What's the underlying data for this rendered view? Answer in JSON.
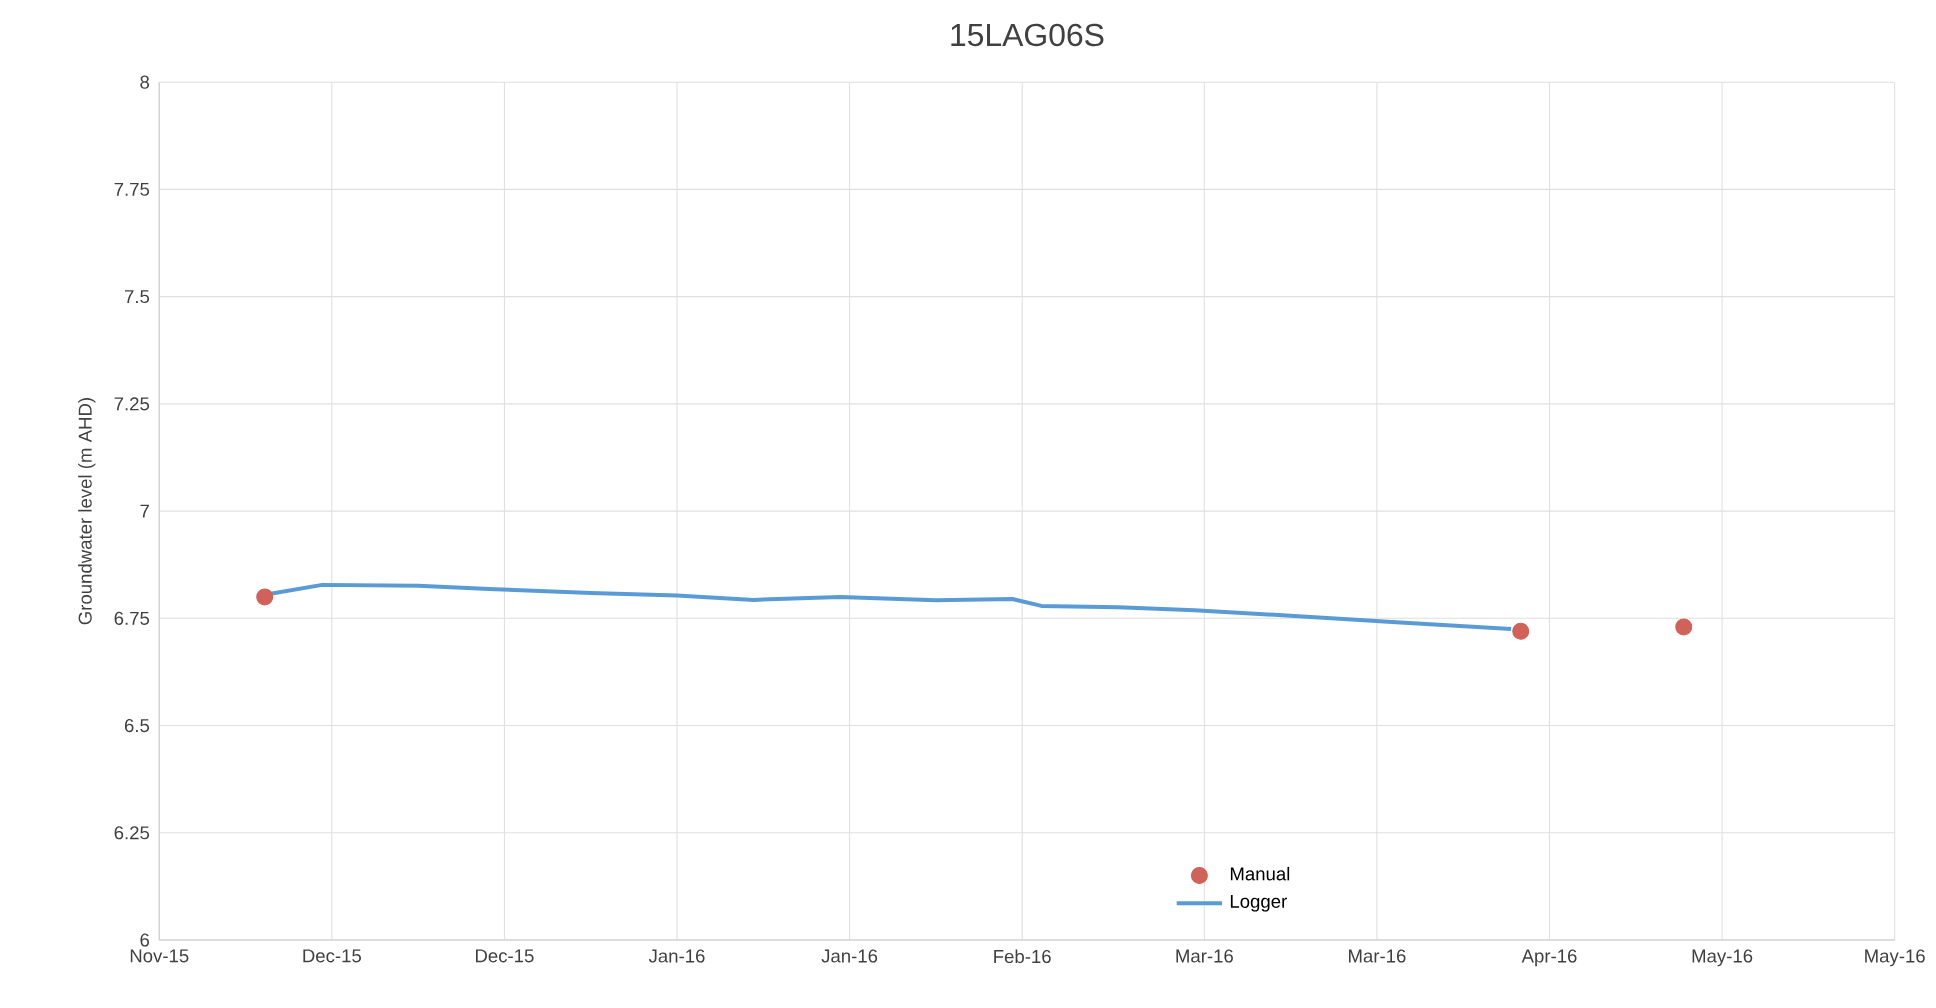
{
  "chart_data": {
    "type": "line",
    "title": "15LAG06S",
    "ylabel": "Groundwater level (m AHD)",
    "xlim": [
      "2015-11-20",
      "2016-05-19"
    ],
    "xticks": [
      {
        "value": "2015-11-20",
        "label": "Nov-15"
      },
      {
        "value": "2015-12-08",
        "label": "Dec-15"
      },
      {
        "value": "2015-12-26",
        "label": "Dec-15"
      },
      {
        "value": "2016-01-13",
        "label": "Jan-16"
      },
      {
        "value": "2016-01-31",
        "label": "Jan-16"
      },
      {
        "value": "2016-02-18",
        "label": "Feb-16"
      },
      {
        "value": "2016-03-08",
        "label": "Mar-16"
      },
      {
        "value": "2016-03-26",
        "label": "Mar-16"
      },
      {
        "value": "2016-04-13",
        "label": "Apr-16"
      },
      {
        "value": "2016-05-01",
        "label": "May-16"
      },
      {
        "value": "2016-05-19",
        "label": "May-16"
      }
    ],
    "ylim": [
      6,
      8
    ],
    "yticks": [
      6,
      6.25,
      6.5,
      6.75,
      7,
      7.25,
      7.5,
      7.75,
      8
    ],
    "grid": true,
    "legend": "bottom",
    "series": [
      {
        "name": "Manual",
        "type": "scatter",
        "marker": "circle",
        "color": "#d0625a",
        "x": [
          "2015-12-01",
          "2016-04-10",
          "2016-04-27"
        ],
        "values": [
          6.8,
          6.72,
          6.73
        ]
      },
      {
        "name": "Logger",
        "marker": "none",
        "line_style": "solid",
        "color": "#5b9bd5",
        "x": [
          "2015-12-01",
          "2015-12-07",
          "2015-12-17",
          "2015-12-25",
          "2016-01-04",
          "2016-01-13",
          "2016-01-21",
          "2016-01-30",
          "2016-02-09",
          "2016-02-17",
          "2016-02-20",
          "2016-02-28",
          "2016-03-07",
          "2016-03-17",
          "2016-03-28",
          "2016-04-09"
        ],
        "values": [
          6.805,
          6.828,
          6.826,
          6.818,
          6.809,
          6.803,
          6.793,
          6.8,
          6.792,
          6.795,
          6.779,
          6.776,
          6.769,
          6.756,
          6.741,
          6.725
        ]
      }
    ]
  }
}
